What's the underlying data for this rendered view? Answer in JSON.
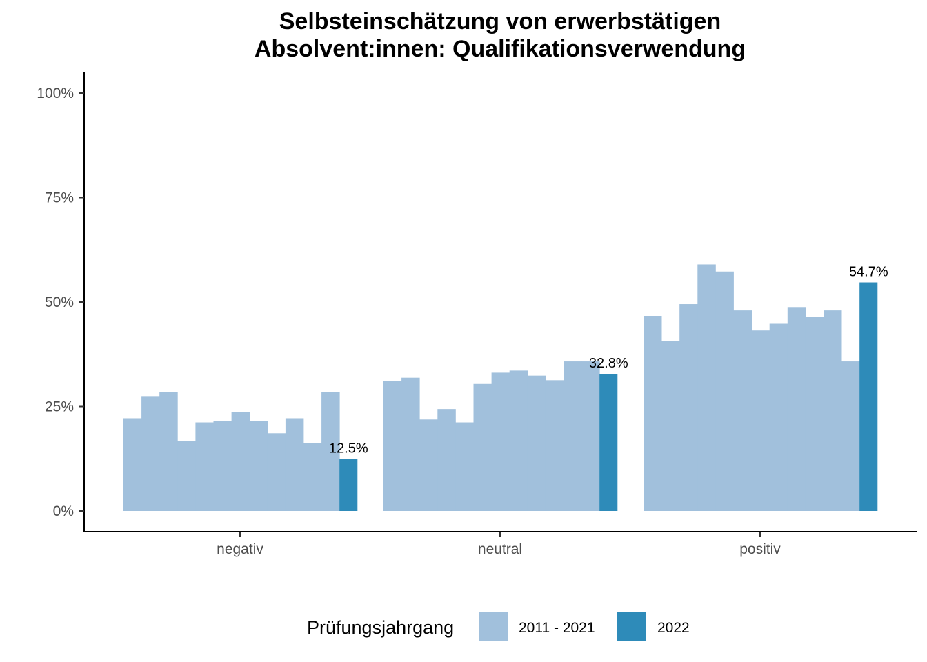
{
  "chart_data": {
    "type": "bar",
    "title_lines": [
      "Selbsteinschätzung von erwerbstätigen",
      "Absolvent:innen: Qualifikationsverwendung"
    ],
    "categories": [
      "negativ",
      "neutral",
      "positiv"
    ],
    "ylim": [
      0,
      1.05
    ],
    "y_ticks": [
      0,
      0.25,
      0.5,
      0.75,
      1.0
    ],
    "y_tick_labels": [
      "0%",
      "25%",
      "50%",
      "75%",
      "100%"
    ],
    "grid": false,
    "legend_position": "bottom",
    "legend_title": "Prüfungsjahrgang",
    "series": [
      {
        "name": "2011 - 2021",
        "color": "#a1c0dc",
        "values": [
          [
            0.222,
            0.275,
            0.285,
            0.167,
            0.212,
            0.215,
            0.237,
            0.215,
            0.186,
            0.222,
            0.163,
            0.285
          ],
          [
            0.311,
            0.319,
            0.219,
            0.244,
            0.212,
            0.304,
            0.331,
            0.336,
            0.324,
            0.313,
            0.358,
            0.358
          ],
          [
            0.467,
            0.407,
            0.495,
            0.59,
            0.573,
            0.48,
            0.432,
            0.448,
            0.488,
            0.465,
            0.48,
            0.358
          ]
        ]
      },
      {
        "name": "2022",
        "color": "#2e8bb9",
        "values": [
          0.125,
          0.328,
          0.547
        ],
        "labels": [
          "12.5%",
          "32.8%",
          "54.7%"
        ]
      }
    ]
  }
}
